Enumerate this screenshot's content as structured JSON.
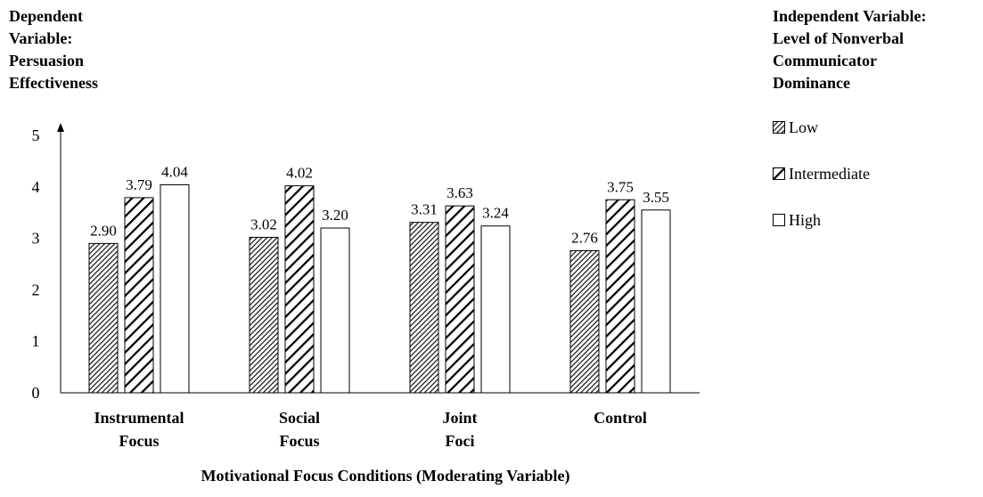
{
  "chart_data": {
    "type": "bar",
    "ylabel_lines": [
      "Dependent",
      "Variable:",
      "Persuasion",
      "Effectiveness"
    ],
    "xlabel": "Motivational Focus Conditions (Moderating Variable)",
    "legend_title_lines": [
      "Independent Variable:",
      "Level of Nonverbal",
      "Communicator",
      "Dominance"
    ],
    "legend_placement": "right",
    "categories": [
      [
        "Instrumental",
        "Focus"
      ],
      [
        "Social",
        "Focus"
      ],
      [
        "Joint",
        "Foci"
      ],
      [
        "Control"
      ]
    ],
    "series": [
      {
        "name": "Low",
        "pattern": "fine-diagonal",
        "values": [
          2.9,
          3.02,
          3.31,
          2.76
        ],
        "labels": [
          "2.90",
          "3.02",
          "3.31",
          "2.76"
        ]
      },
      {
        "name": "Intermediate",
        "pattern": "wide-diagonal",
        "values": [
          3.79,
          4.02,
          3.63,
          3.75
        ],
        "labels": [
          "3.79",
          "4.02",
          "3.63",
          "3.75"
        ]
      },
      {
        "name": "High",
        "pattern": "white",
        "values": [
          4.04,
          3.2,
          3.24,
          3.55
        ],
        "labels": [
          "4.04",
          "3.20",
          "3.24",
          "3.55"
        ]
      }
    ],
    "ylim": [
      0,
      5
    ],
    "yticks": [
      "0",
      "1",
      "2",
      "3",
      "4",
      "5"
    ],
    "grid": false
  }
}
